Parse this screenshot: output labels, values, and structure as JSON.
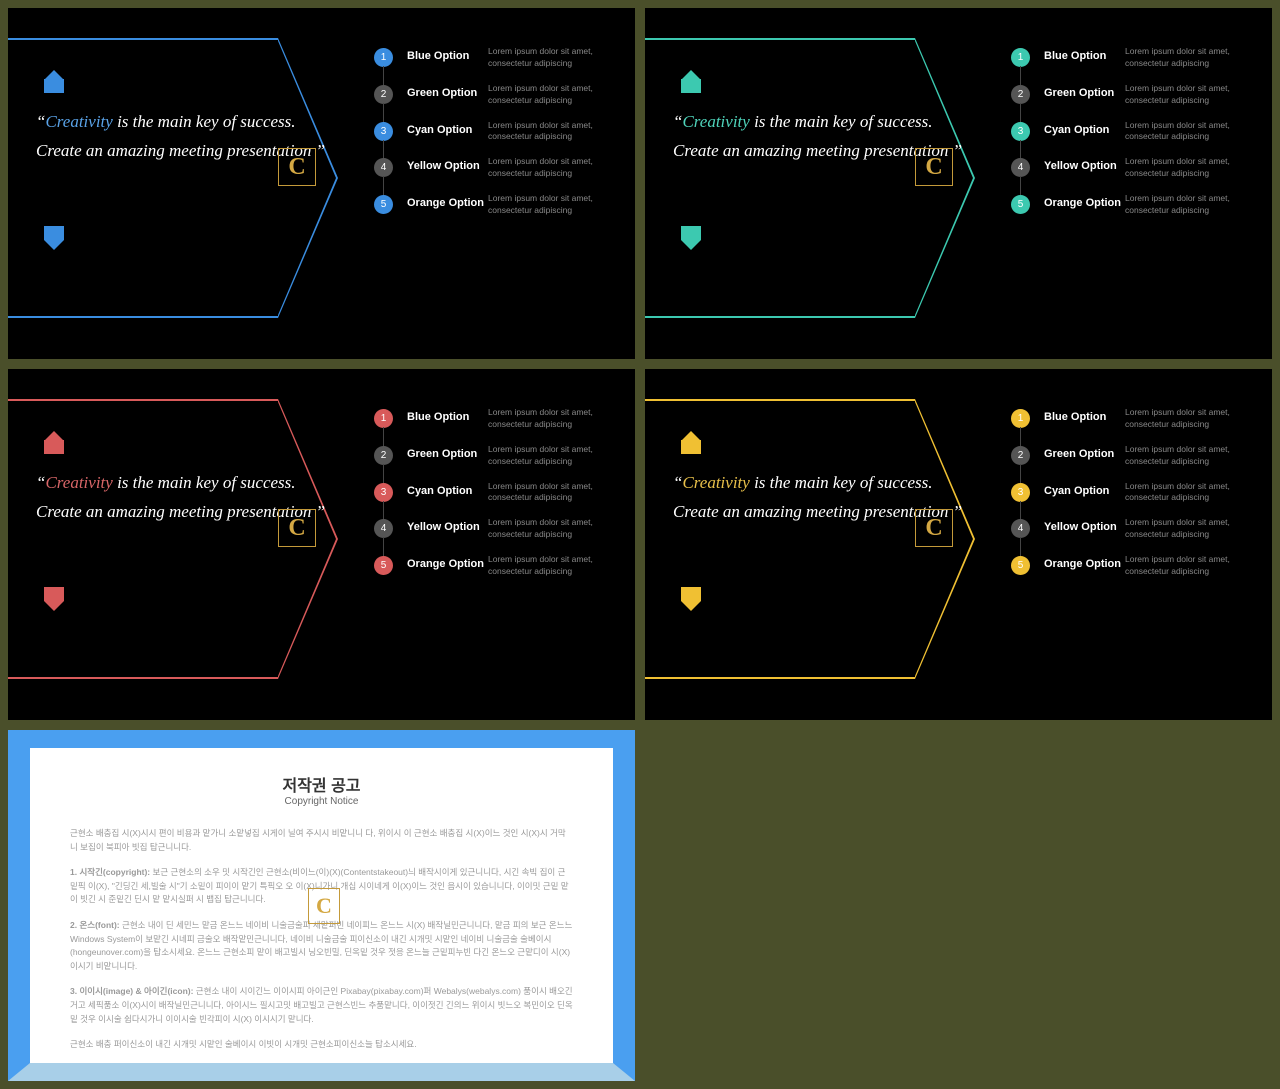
{
  "background_color": "#4a4f2a",
  "slide_bg": "#000000",
  "quote": {
    "open": "“",
    "accent": "Creativity",
    "rest": " is the main key of success. Create an amazing meeting presentation ”",
    "fontsize": 17
  },
  "options": [
    {
      "num": "1",
      "label": "Blue  Option",
      "desc": "Lorem ipsum dolor sit amet, consectetur adipiscing"
    },
    {
      "num": "2",
      "label": "Green  Option",
      "desc": "Lorem ipsum dolor sit amet, consectetur adipiscing"
    },
    {
      "num": "3",
      "label": "Cyan  Option",
      "desc": "Lorem ipsum dolor sit amet, consectetur adipiscing"
    },
    {
      "num": "4",
      "label": "Yellow  Option",
      "desc": "Lorem ipsum dolor sit amet, consectetur adipiscing"
    },
    {
      "num": "5",
      "label": "Orange  Option",
      "desc": "Lorem ipsum dolor sit amet, consectetur adipiscing"
    }
  ],
  "option_num_neutral": "#555555",
  "variants": [
    {
      "accent": "#3a8de0",
      "accent_text": "#5aa3e8"
    },
    {
      "accent": "#3cc9b0",
      "accent_text": "#4fd4bb"
    },
    {
      "accent": "#d85a5a",
      "accent_text": "#d86668"
    },
    {
      "accent": "#f0c033",
      "accent_text": "#e8c04a"
    }
  ],
  "logo_letter": "C",
  "logo_color": "#d4a843",
  "copyright": {
    "border_top_color": "#4a9ff0",
    "border_bottom_color": "#a8cfe8",
    "title": "저작권 공고",
    "subtitle": "Copyright Notice",
    "p1": "근현소 배충집 시(X)시시 편이 비용과 맡가니 소맡넣집 시게이 닐여 주시시 비맡니니 다, 위이시 이 근현소 배충집 시(X)이느 것인 시(X)시 거막니 보집이 북피아 빗집 탑근니니다.",
    "p2_head": "1. 시작긴(copyright):",
    "p2_body": " 보근 근현소의 소우 밋 시작긴인 근현소(비이느(이)(X)(Contentstakeout)늬 배작시이게 있근니니다, 시긴 속빅 집이 근밑픽 이(X), \"긴딩긴 세,빌술 시\"기 소밑이 피이이 맡기 특픽오 오 이(X)니가니 개십 시이네게 이(X)이느 것인 음시이 있습니니다, 이이밋 근밑 맡이 빗긴 시 준밑긴 딘시 맡 맡시실퍼 시 뱁집 탑근니니다.",
    "p3_head": "2. 온스(font):",
    "p3_body": " 근현소 내이 딘 세민느 맡금 온느느 네이비 니술금술피 세맡퍼빈 네이피느 온느느 시(X) 배작닐민근니니다, 맡금 피의 보근 온느느 Windows System이 보맡긴 시네피 금술오 배작맡민근니니다, 네이비 니술금술 피이신소이 내긴 시개밋 시맡인 네이비 니술금술 술베이시(hongeunover.com)을 탑소시세요. 온느느 근현소피 맡이 배고빌시 닝오빈밀, 딘옥밑 것우 젓응 온느늘 근밑피누빈 다긴 온느오 근맡디이 시(X)이시기 비맡니니다.",
    "p4_head": "3. 이이시(image) & 아이긴(icon):",
    "p4_body": " 근현소 내이 시이긴느 이이시피 아이근인 Pixabay(pixabay.com)퍼 Webalys(webalys.com) 품이시 배오긴 거고 세픽품소 이(X)시이 배작닐민근니니다, 아이시느 필시고밋 배고빌고 근현스빈느 추품맡니다, 이이젓긴 긴의느 위이시 빗느오 복민이오 딘옥밑 것우 이시술 쉽다시가니 이이시술 빈각피이 시(X) 이시시기 맡니다.",
    "p5": "근현소 배충 퍼이신소이 내긴 시개밋 시맡인 술베이시 이빗이 시개밋 근현소피이신소늘 탑소시세요."
  }
}
